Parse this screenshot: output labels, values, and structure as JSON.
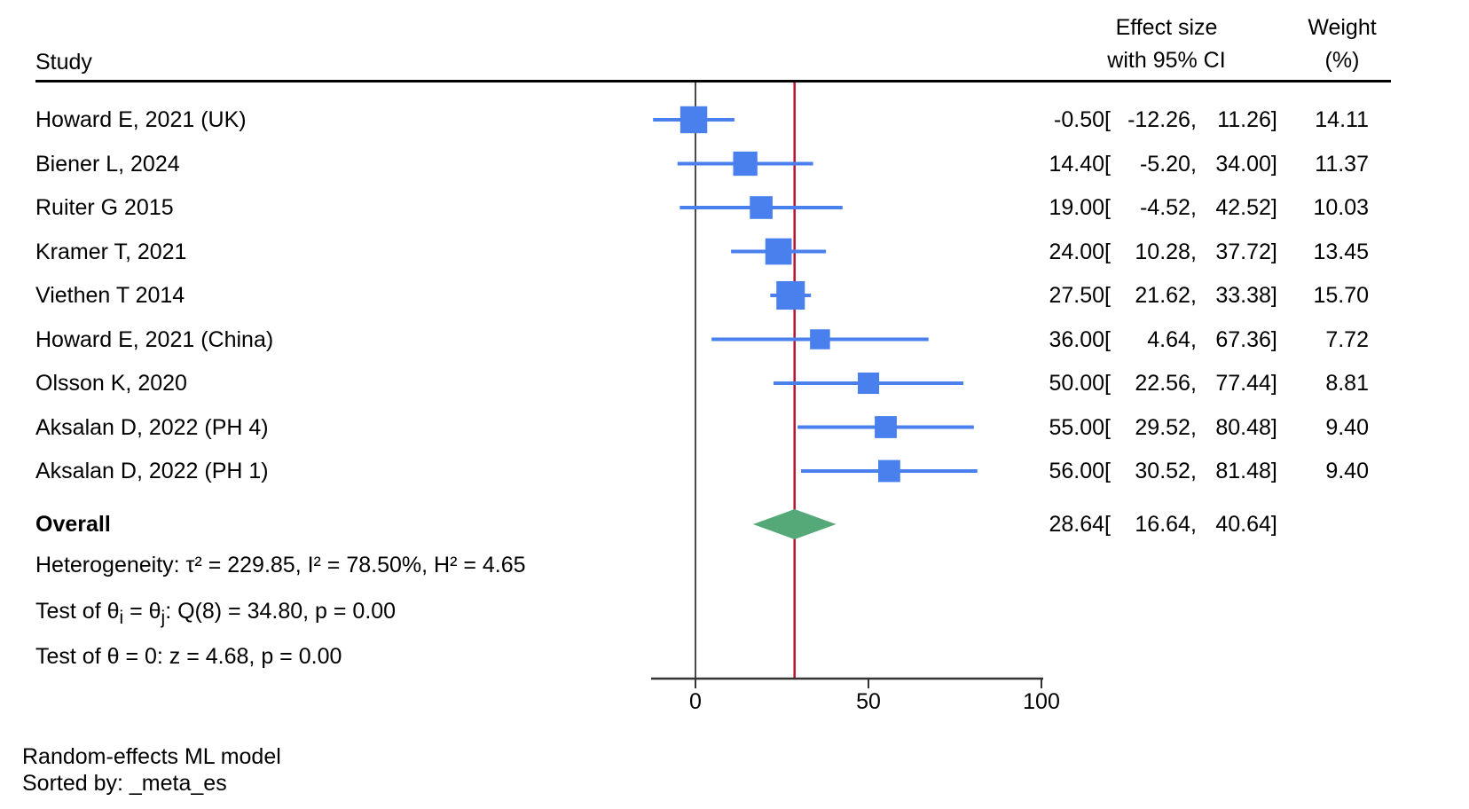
{
  "columns": {
    "study": "Study",
    "effect_line1": "Effect size",
    "effect_line2": "with 95% CI",
    "weight_line1": "Weight",
    "weight_line2": "(%)"
  },
  "format": {
    "open": "[",
    "comma": ",",
    "close": "]"
  },
  "stats": {
    "heterogeneity": "Heterogeneity: τ² = 229.85, I² = 78.50%, H² = 4.65",
    "test_theta_p1": "Test of θ",
    "test_theta_sub1": "i",
    "test_theta_p2": " = θ",
    "test_theta_sub2": "j",
    "test_theta_p3": ": Q(8) = 34.80, p = 0.00",
    "test_zero": "Test of θ = 0: z = 4.68, p = 0.00"
  },
  "footer": {
    "line1": "Random-effects ML model",
    "line2": "Sorted by: _meta_es"
  },
  "chart_data": {
    "type": "forest",
    "x_axis": {
      "ticks": [
        0,
        50,
        100
      ],
      "range": [
        -12.5,
        100
      ]
    },
    "studies": [
      {
        "label": "Howard E, 2021 (UK)",
        "est": -0.5,
        "lo": -12.26,
        "hi": 11.26,
        "weight": 14.11
      },
      {
        "label": "Biener L, 2024",
        "est": 14.4,
        "lo": -5.2,
        "hi": 34.0,
        "weight": 11.37
      },
      {
        "label": "Ruiter G 2015",
        "est": 19.0,
        "lo": -4.52,
        "hi": 42.52,
        "weight": 10.03
      },
      {
        "label": "Kramer T, 2021",
        "est": 24.0,
        "lo": 10.28,
        "hi": 37.72,
        "weight": 13.45
      },
      {
        "label": "Viethen T 2014",
        "est": 27.5,
        "lo": 21.62,
        "hi": 33.38,
        "weight": 15.7
      },
      {
        "label": "Howard E, 2021 (China)",
        "est": 36.0,
        "lo": 4.64,
        "hi": 67.36,
        "weight": 7.72
      },
      {
        "label": "Olsson K, 2020",
        "est": 50.0,
        "lo": 22.56,
        "hi": 77.44,
        "weight": 8.81
      },
      {
        "label": "Aksalan D, 2022 (PH 4)",
        "est": 55.0,
        "lo": 29.52,
        "hi": 80.48,
        "weight": 9.4
      },
      {
        "label": "Aksalan D, 2022 (PH 1)",
        "est": 56.0,
        "lo": 30.52,
        "hi": 81.48,
        "weight": 9.4
      }
    ],
    "overall": {
      "label": "Overall",
      "est": 28.64,
      "lo": 16.64,
      "hi": 40.64
    },
    "zero_line_value": 0,
    "reference_line_value": 28.64,
    "colors": {
      "marker": "#4a80ee",
      "ci_line": "#4a80ee",
      "diamond": "#55a878",
      "reference_line": "#b8122f",
      "zero_line": "#4a4a4a",
      "axis": "#333333"
    }
  }
}
